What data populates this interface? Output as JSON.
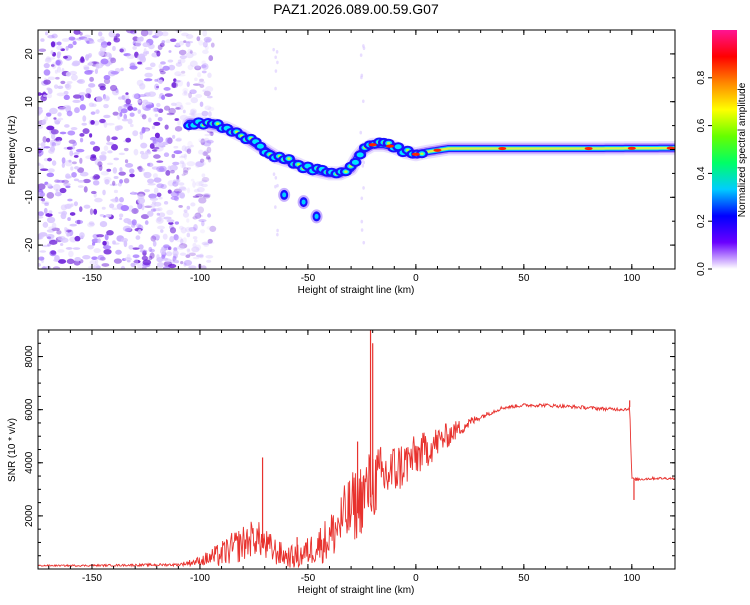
{
  "title": "PAZ1.2026.089.00.59.G07",
  "colors": {
    "snr_line": "#e8322e",
    "ridge": "#d9f24a",
    "scatter_low": "#d9c7ff",
    "scatter_mid": "#a77bff",
    "scatter_high": "#6a1bd8"
  },
  "chart_data": [
    {
      "type": "heatmap",
      "id": "spectrogram",
      "xlabel": "Height of straight line (km)",
      "ylabel": "Frequency (Hz)",
      "xlim": [
        -175,
        120
      ],
      "ylim": [
        -25,
        25
      ],
      "xticks": [
        -150,
        -100,
        -50,
        0,
        50,
        100
      ],
      "xtick_labels": [
        "-150",
        "-100",
        "-50",
        "0",
        "50",
        "100"
      ],
      "yticks": [
        -20,
        -10,
        0,
        10,
        20
      ],
      "ytick_labels": [
        "-20",
        "-10",
        "0",
        "10",
        "20"
      ],
      "ridge": {
        "x": [
          -105,
          -95,
          -88,
          -80,
          -72,
          -65,
          -58,
          -50,
          -45,
          -40,
          -35,
          -30,
          -27,
          -24,
          -20,
          -15,
          -10,
          -5,
          0,
          5,
          15,
          40,
          80,
          120
        ],
        "y": [
          5.5,
          5.3,
          4.5,
          2.8,
          0.5,
          -1.5,
          -2.5,
          -4,
          -4.5,
          -5,
          -5,
          -4,
          -1.5,
          0,
          1,
          1,
          0.5,
          -0.5,
          -1,
          -0.5,
          0.2,
          0.2,
          0.2,
          0.3
        ],
        "peak_amplitude_x": [
          -20,
          -12,
          0,
          10,
          40,
          80,
          100,
          118
        ]
      },
      "isolated_blobs": [
        {
          "x": -61,
          "y": -9.5
        },
        {
          "x": -46,
          "y": -14
        },
        {
          "x": -52,
          "y": -11
        }
      ],
      "noise_region_x": [
        -175,
        -100
      ]
    },
    {
      "type": "colorbar",
      "id": "colorbar",
      "label": "Normalized spectral amplitude",
      "ylim": [
        0,
        1
      ],
      "ticks": [
        0.0,
        0.2,
        0.4,
        0.6,
        0.8
      ],
      "tick_labels": [
        "0.0",
        "0.2",
        "0.4",
        "0.6",
        "0.8"
      ],
      "stops": [
        "#ffffff",
        "#6a00ff",
        "#0000ff",
        "#00ccff",
        "#00ff66",
        "#66ff00",
        "#ffff00",
        "#ff8800",
        "#ff0000",
        "#ff1493"
      ]
    },
    {
      "type": "line",
      "id": "snr",
      "xlabel": "Height of straight line (km)",
      "ylabel": "SNR (10 * v/v)",
      "xlim": [
        -175,
        120
      ],
      "ylim": [
        0,
        9000
      ],
      "xticks": [
        -150,
        -100,
        -50,
        0,
        50,
        100
      ],
      "xtick_labels": [
        "-150",
        "-100",
        "-50",
        "0",
        "50",
        "100"
      ],
      "yticks": [
        2000,
        4000,
        6000,
        8000
      ],
      "ytick_labels": [
        "2000",
        "4000",
        "6000",
        "8000"
      ],
      "base": {
        "x": [
          -175,
          -150,
          -110,
          -100,
          -90,
          -85,
          -80,
          -75,
          -72,
          -70,
          -65,
          -60,
          -55,
          -50,
          -45,
          -40,
          -35,
          -30,
          -25,
          -20,
          -15,
          -10,
          -5,
          0,
          5,
          10,
          15,
          20,
          30,
          40,
          50,
          60,
          70,
          80,
          90,
          98,
          99,
          100,
          101,
          110,
          120
        ],
        "y": [
          120,
          120,
          150,
          250,
          400,
          600,
          750,
          1000,
          900,
          700,
          500,
          350,
          300,
          500,
          700,
          900,
          1400,
          1800,
          2300,
          2800,
          3100,
          3400,
          3700,
          4000,
          4300,
          4600,
          4900,
          5200,
          5700,
          6050,
          6150,
          6150,
          6100,
          6050,
          6000,
          6000,
          6100,
          3400,
          3350,
          3400,
          3400
        ]
      },
      "noise": [
        [
          -175,
          50
        ],
        [
          -110,
          100
        ],
        [
          -100,
          350
        ],
        [
          -90,
          1000
        ],
        [
          -80,
          1400
        ],
        [
          -70,
          1300
        ],
        [
          -60,
          800
        ],
        [
          -50,
          1100
        ],
        [
          -40,
          1800
        ],
        [
          -30,
          2800
        ],
        [
          -20,
          2800
        ],
        [
          -10,
          2100
        ],
        [
          0,
          1600
        ],
        [
          10,
          1200
        ],
        [
          20,
          650
        ],
        [
          30,
          200
        ],
        [
          40,
          130
        ],
        [
          99,
          130
        ],
        [
          100,
          120
        ],
        [
          120,
          80
        ]
      ],
      "spikes": [
        {
          "x": -71,
          "y": 4200
        },
        {
          "x": -55,
          "y": 1200
        },
        {
          "x": -27,
          "y": 4800
        },
        {
          "x": -21,
          "y": 9000
        },
        {
          "x": -20,
          "y": 8500
        },
        {
          "x": 99,
          "y": 6350
        },
        {
          "x": 101,
          "y": 2600
        }
      ]
    }
  ]
}
